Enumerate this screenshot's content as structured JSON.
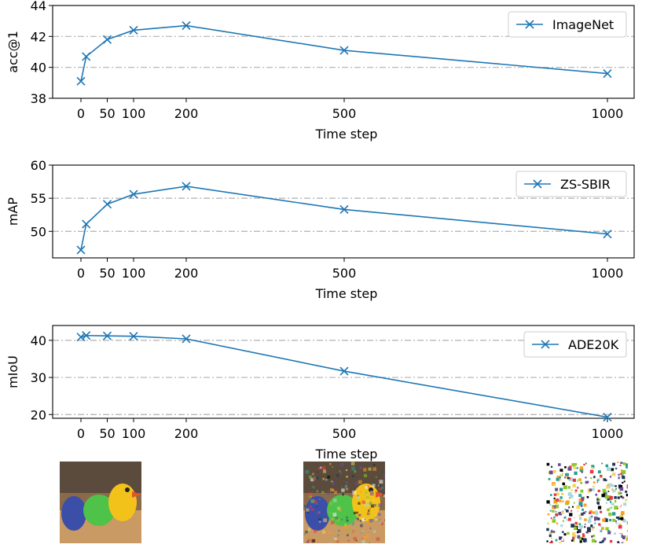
{
  "chart_data": [
    {
      "type": "line",
      "x": [
        0,
        10,
        50,
        100,
        200,
        500,
        1000
      ],
      "xticks": [
        "0",
        "50",
        "100",
        "200",
        "500",
        "1000"
      ],
      "xtick_values": [
        0,
        50,
        100,
        200,
        500,
        1000
      ],
      "xlabel": "Time step",
      "ylabel": "acc@1",
      "ylim": [
        38,
        44
      ],
      "yticks": [
        38,
        40,
        42,
        44
      ],
      "grid_y": [
        40,
        42
      ],
      "legend": "top-right",
      "series": [
        {
          "name": "ImageNet",
          "color": "#1f77b4",
          "marker": "x",
          "values": [
            39.1,
            40.7,
            41.8,
            42.4,
            42.7,
            41.1,
            39.6
          ]
        }
      ]
    },
    {
      "type": "line",
      "x": [
        0,
        10,
        50,
        100,
        200,
        500,
        1000
      ],
      "xticks": [
        "0",
        "50",
        "100",
        "200",
        "500",
        "1000"
      ],
      "xtick_values": [
        0,
        50,
        100,
        200,
        500,
        1000
      ],
      "xlabel": "Time step",
      "ylabel": "mAP",
      "ylim": [
        46,
        60
      ],
      "yticks": [
        50,
        55,
        60
      ],
      "grid_y": [
        50,
        55
      ],
      "legend": "top-right",
      "series": [
        {
          "name": "ZS-SBIR",
          "color": "#1f77b4",
          "marker": "x",
          "values": [
            47.2,
            51.1,
            54.1,
            55.6,
            56.8,
            53.3,
            49.6
          ]
        }
      ]
    },
    {
      "type": "line",
      "x": [
        0,
        10,
        50,
        100,
        200,
        500,
        1000
      ],
      "xticks": [
        "0",
        "50",
        "100",
        "200",
        "500",
        "1000"
      ],
      "xtick_values": [
        0,
        50,
        100,
        200,
        500,
        1000
      ],
      "xlabel": "Time step",
      "ylabel": "mIoU",
      "ylim": [
        19,
        44
      ],
      "yticks": [
        20,
        30,
        40
      ],
      "grid_y": [
        20,
        30,
        40
      ],
      "legend": "top-right",
      "series": [
        {
          "name": "ADE20K",
          "color": "#1f77b4",
          "marker": "x",
          "values": [
            40.9,
            41.3,
            41.2,
            41.1,
            40.4,
            31.7,
            19.3
          ]
        }
      ]
    }
  ],
  "thumbnails": [
    {
      "name": "clean-toys-image",
      "noise": 0.0
    },
    {
      "name": "partially-noised-toys-image",
      "noise": 0.45
    },
    {
      "name": "pure-noise-image",
      "noise": 1.0
    }
  ]
}
